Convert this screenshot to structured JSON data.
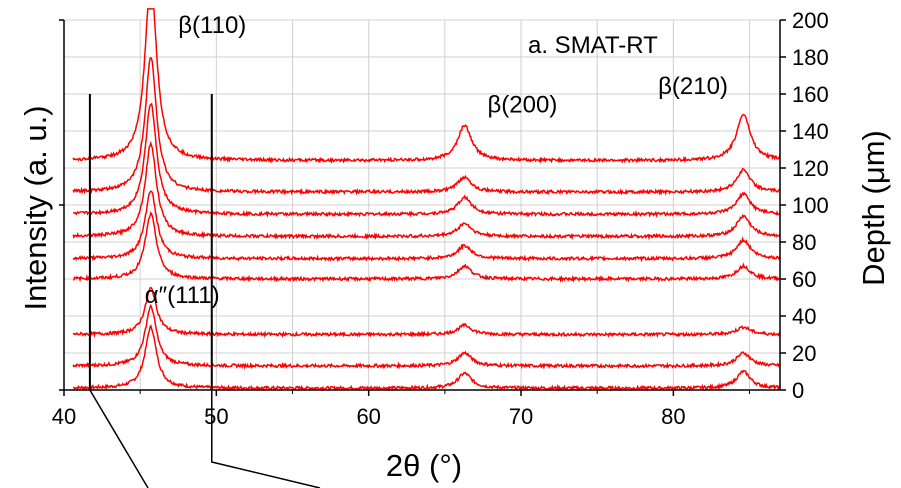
{
  "chart_data": {
    "type": "line",
    "title": "",
    "xlabel": "2θ (°)",
    "ylabel_left": "Intensity (a. u.)",
    "ylabel_right": "Depth (μm)",
    "xlim": [
      40,
      87
    ],
    "ylim_right": [
      0,
      200
    ],
    "x_ticks": [
      40,
      50,
      60,
      70,
      80
    ],
    "right_ticks": [
      0,
      20,
      40,
      60,
      80,
      100,
      120,
      140,
      160,
      180,
      200
    ],
    "grid": true,
    "line_color": "#ff0000",
    "panel_label": "a. SMAT-RT",
    "annotations": [
      {
        "text": "β(110)",
        "x": 47.5,
        "depth": 193
      },
      {
        "text": "β(200)",
        "x": 67.8,
        "depth": 150
      },
      {
        "text": "β(210)",
        "x": 79,
        "depth": 160
      },
      {
        "text": "α″(111)",
        "x": 45.3,
        "depth": 47
      }
    ],
    "reference_lines": [
      {
        "x": 41.7,
        "depth_top": 160
      },
      {
        "x": 49.7,
        "depth_top": 160
      }
    ],
    "peak_positions_2theta": [
      45.7,
      66.3,
      84.6
    ],
    "series": [
      {
        "baseline_depth": 1,
        "peak_heights_depth": [
          33,
          8,
          9
        ],
        "alpha_peak_height": 0
      },
      {
        "baseline_depth": 13,
        "peak_heights_depth": [
          32,
          7,
          7
        ],
        "alpha_peak_height": 0
      },
      {
        "baseline_depth": 30,
        "peak_heights_depth": [
          25,
          5,
          4
        ],
        "alpha_peak_height": 0
      },
      {
        "baseline_depth": 60,
        "peak_heights_depth": [
          35,
          7,
          7
        ],
        "alpha_peak_height": 0
      },
      {
        "baseline_depth": 71,
        "peak_heights_depth": [
          37,
          7,
          10
        ],
        "alpha_peak_height": 0
      },
      {
        "baseline_depth": 83,
        "peak_heights_depth": [
          50,
          7,
          11
        ],
        "alpha_peak_height": 0
      },
      {
        "baseline_depth": 95,
        "peak_heights_depth": [
          60,
          9,
          11
        ],
        "alpha_peak_height": 0
      },
      {
        "baseline_depth": 107,
        "peak_heights_depth": [
          73,
          8,
          12
        ],
        "alpha_peak_height": 0
      },
      {
        "baseline_depth": 124,
        "peak_heights_depth": [
          100,
          19,
          25
        ],
        "alpha_peak_height": 0
      }
    ]
  }
}
